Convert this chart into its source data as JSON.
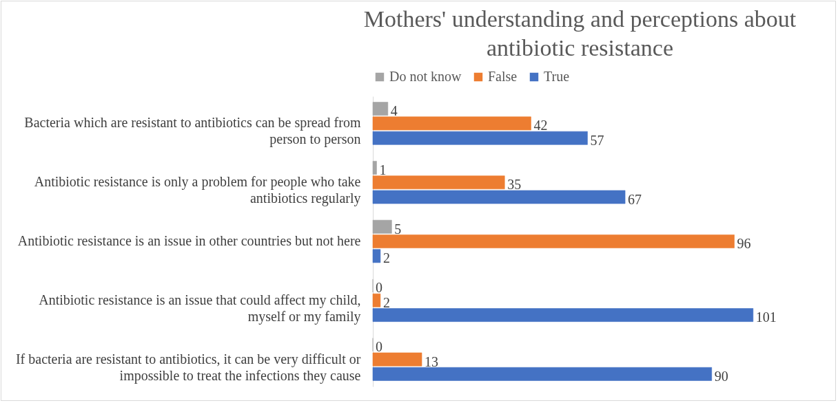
{
  "chart_data": {
    "type": "bar",
    "orientation": "horizontal",
    "title": "Mothers' understanding and perceptions about antibiotic resistance",
    "categories": [
      "Bacteria which are resistant to antibiotics can be spread from person to person",
      "Antibiotic resistance is only a problem for people who take antibiotics regularly",
      "Antibiotic resistance is an issue in other countries but not here",
      "Antibiotic resistance is an issue that could affect my child, myself or my family",
      "If bacteria are resistant to antibiotics, it can be very difficult or impossible to treat the infections they cause"
    ],
    "series": [
      {
        "name": "Do not know",
        "color": "#a5a5a5",
        "values": [
          4,
          1,
          5,
          0,
          0
        ]
      },
      {
        "name": "False",
        "color": "#ed7d31",
        "values": [
          42,
          35,
          96,
          2,
          13
        ]
      },
      {
        "name": "True",
        "color": "#4472c4",
        "values": [
          57,
          67,
          2,
          101,
          90
        ]
      }
    ],
    "data_labels": true,
    "legend": "top",
    "tick_labels": "y"
  }
}
